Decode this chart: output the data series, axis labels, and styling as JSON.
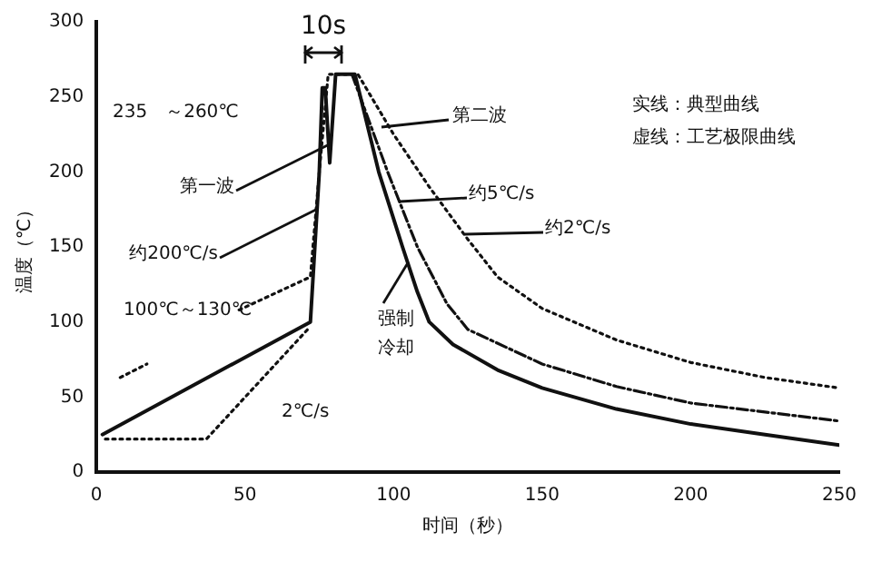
{
  "chart_data": {
    "type": "line",
    "xlabel": "时间（秒）",
    "ylabel": "温度（℃）",
    "xlim": [
      0,
      250
    ],
    "ylim": [
      0,
      300
    ],
    "xticks": [
      0,
      50,
      100,
      150,
      200,
      250
    ],
    "yticks": [
      0,
      50,
      100,
      150,
      200,
      250,
      300
    ],
    "grid": false,
    "legend": false,
    "marker": "none",
    "series": [
      {
        "type": "line",
        "color": "#111111",
        "line_style": "solid",
        "x": [
          2,
          72,
          75,
          76,
          77,
          78.5,
          80.5,
          87,
          95,
          103,
          108,
          112,
          120,
          135,
          150,
          175,
          200,
          225,
          250
        ],
        "values": [
          25,
          100,
          200,
          256,
          256,
          206,
          265,
          265,
          200,
          150,
          120,
          100,
          85,
          68,
          56,
          42,
          32,
          25,
          18
        ]
      },
      {
        "type": "line",
        "color": "#111111",
        "line_style": "dotted",
        "x": [
          3,
          37,
          72
        ],
        "values": [
          22,
          22,
          97
        ]
      },
      {
        "type": "line",
        "color": "#111111",
        "line_style": "dotted",
        "x": [
          8,
          17,
          30,
          48,
          72,
          75,
          78,
          88,
          100,
          112,
          125,
          135,
          150,
          175,
          200,
          225,
          250
        ],
        "values": [
          63,
          72,
          null,
          108,
          130,
          200,
          265,
          265,
          225,
          190,
          155,
          130,
          109,
          88,
          73,
          63,
          56
        ]
      },
      {
        "type": "line",
        "color": "#111111",
        "line_style": "dashed",
        "x": [
          86,
          98,
          108,
          118,
          125,
          150,
          175,
          200,
          225,
          250
        ],
        "values": [
          265,
          200,
          150,
          112,
          95,
          72,
          57,
          46,
          40,
          34
        ]
      }
    ],
    "annotations": [
      "235　～260℃",
      "10s",
      {
        "text": "第一波",
        "x": 79,
        "y": 219
      },
      {
        "text": "约200℃/s",
        "x": 74,
        "y": 175
      },
      "第二波",
      "约5℃/s",
      "约2℃/s",
      {
        "text": "强制冷却",
        "x": 105,
        "y": 140
      },
      "100℃～130℃",
      "2℃/s",
      "实线：典型曲线",
      "虚线：工艺极限曲线"
    ]
  }
}
